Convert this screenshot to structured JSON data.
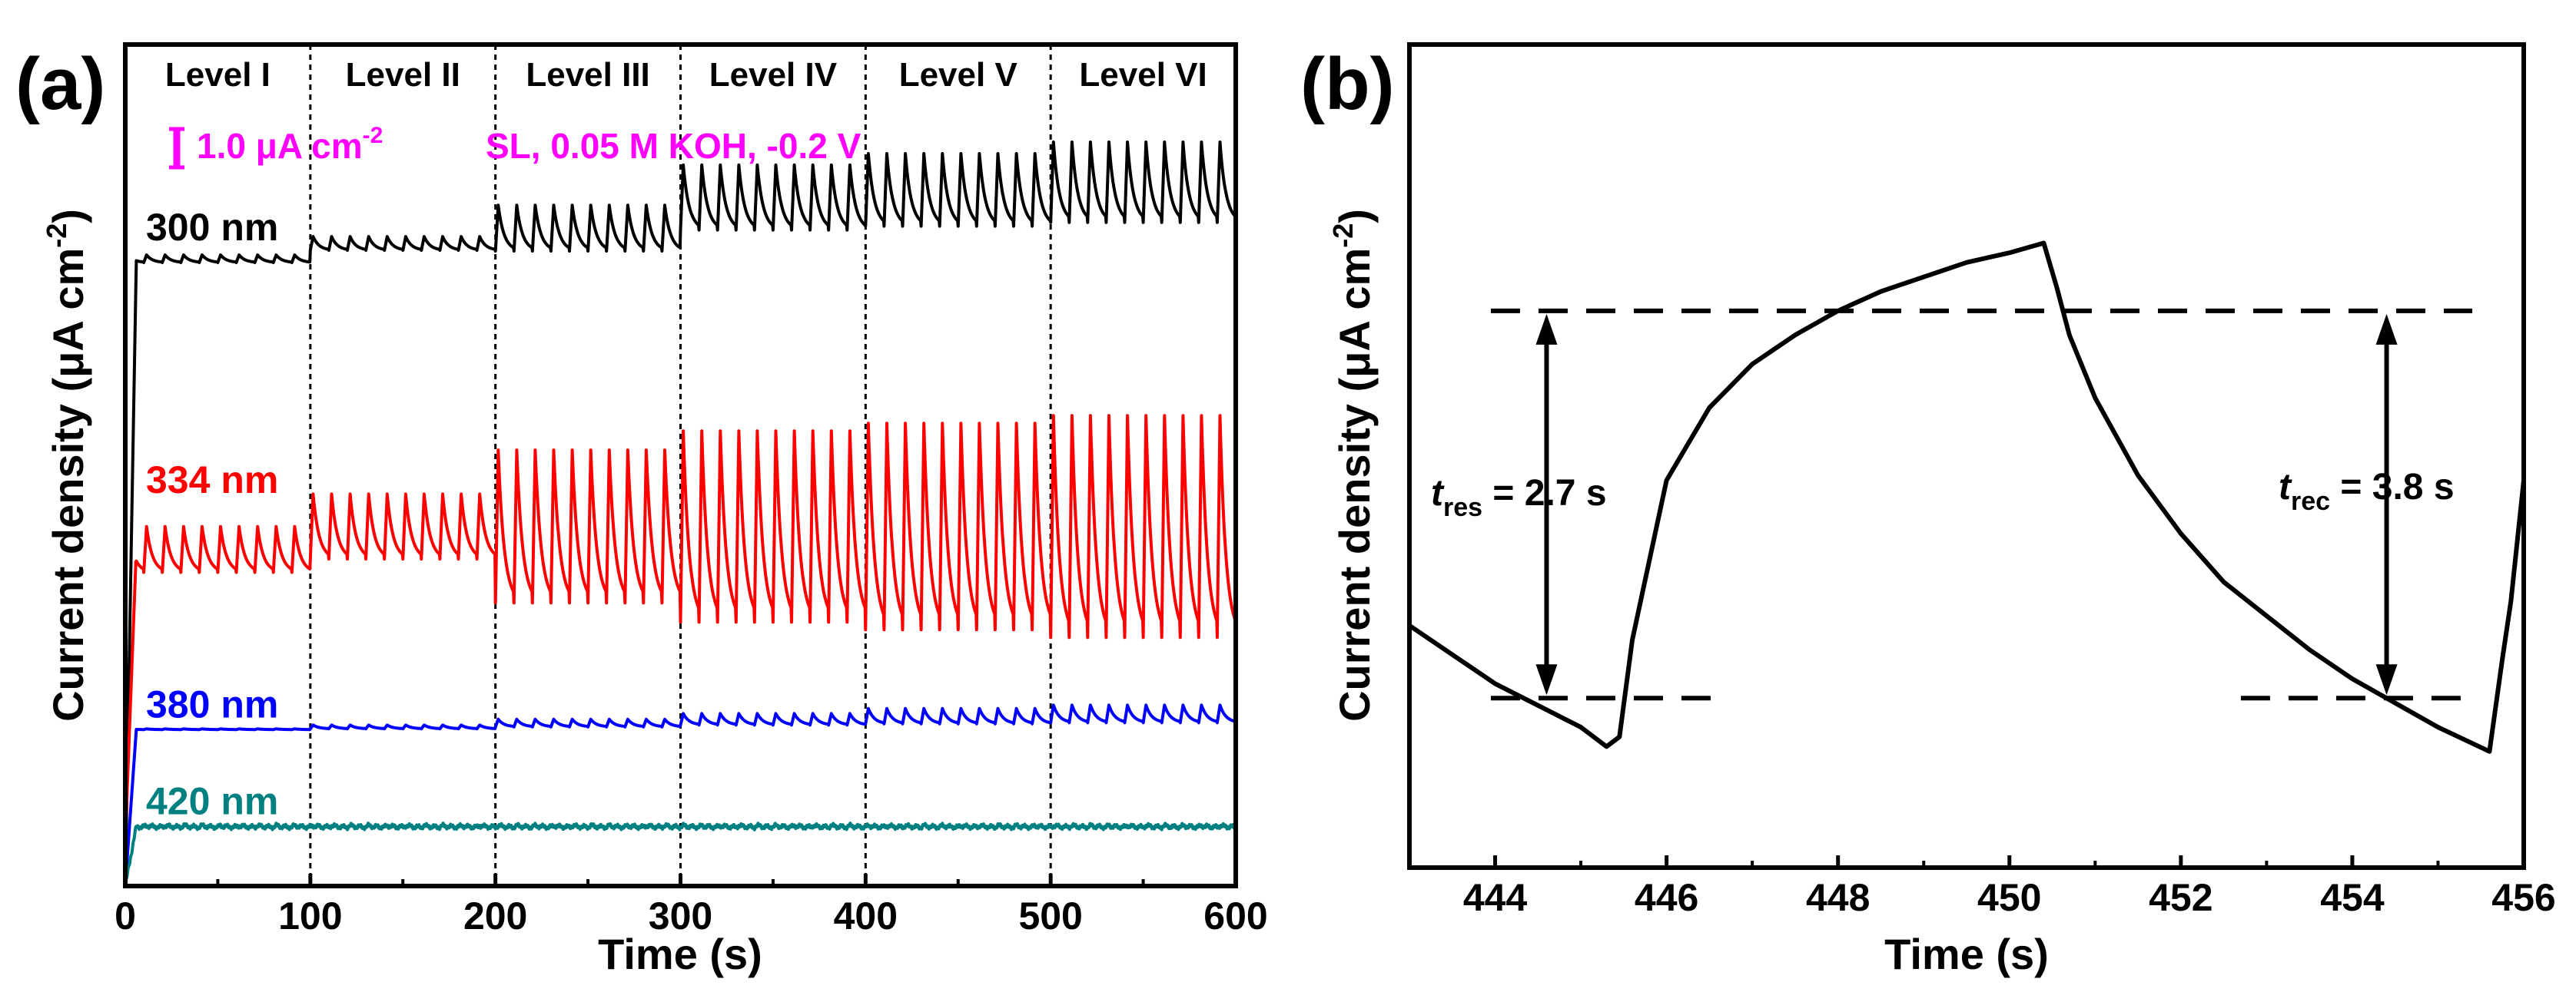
{
  "chart_data": [
    {
      "panel": "(a)",
      "type": "line",
      "xlabel": "Time (s)",
      "ylabel_main": "Current density (μA cm",
      "ylabel_sup": "-2",
      "ylabel_close": ")",
      "xlim": [
        0,
        600
      ],
      "xticks": [
        "0",
        "100",
        "200",
        "300",
        "400",
        "500",
        "600"
      ],
      "levels": [
        "Level I",
        "Level II",
        "Level III",
        "Level IV",
        "Level V",
        "Level VI"
      ],
      "level_boundaries": [
        100,
        200,
        300,
        400,
        500
      ],
      "scale_bar": {
        "value": "1.0 μA cm",
        "sup": "-2"
      },
      "conditions": "SL, 0.05 M KOH, -0.2 V",
      "series": [
        {
          "name": "300 nm",
          "color": "#000000",
          "period": 10,
          "baseline": [
            82,
            84,
            86,
            90,
            91,
            92
          ],
          "amplitude": [
            1.0,
            1.8,
            6.0,
            8.5,
            9.5,
            10.5
          ]
        },
        {
          "name": "334 nm",
          "color": "#ff0000",
          "period": 10,
          "baseline": [
            44,
            47,
            47,
            47,
            47,
            47
          ],
          "amplitude": [
            6.0,
            8.5,
            20.0,
            25.0,
            27.0,
            29.0
          ]
        },
        {
          "name": "380 nm",
          "color": "#0000ff",
          "period": 10,
          "baseline": [
            20.5,
            20.8,
            21.3,
            21.8,
            22.2,
            22.5
          ],
          "amplitude": [
            0.1,
            0.5,
            1.0,
            1.5,
            2.0,
            2.3
          ]
        },
        {
          "name": "420 nm",
          "color": "#008080",
          "period": 10,
          "baseline": [
            7.8,
            7.8,
            7.8,
            7.8,
            7.8,
            7.8
          ],
          "amplitude": [
            0.2,
            0.2,
            0.2,
            0.2,
            0.2,
            0.2
          ]
        }
      ]
    },
    {
      "panel": "(b)",
      "type": "line",
      "xlabel": "Time (s)",
      "ylabel_main": "Current density (μA cm",
      "ylabel_sup": "-2",
      "ylabel_close": ")",
      "xlim": [
        443,
        456
      ],
      "xticks": [
        "444",
        "446",
        "448",
        "450",
        "452",
        "454",
        "456"
      ],
      "response_time": {
        "t_label": "t",
        "sub": "res",
        "text": " = 2.7 s",
        "x": 444.6
      },
      "recovery_time": {
        "t_label": "t",
        "sub": "rec",
        "text": " = 3.8 s",
        "x": 454.4
      },
      "upper_level": 0.9,
      "lower_level": 0.1,
      "curve": {
        "x": [
          443,
          444,
          445,
          445.3,
          445.45,
          445.6,
          446,
          446.5,
          447,
          447.5,
          448,
          448.5,
          449,
          449.5,
          450,
          450.4,
          450.55,
          450.7,
          451,
          451.5,
          452,
          452.5,
          453,
          453.5,
          454,
          454.5,
          455,
          455.6,
          455.75,
          455.85,
          456
        ],
        "y": [
          0.25,
          0.13,
          0.04,
          0.0,
          0.02,
          0.22,
          0.55,
          0.7,
          0.79,
          0.85,
          0.9,
          0.94,
          0.97,
          1.0,
          1.02,
          1.04,
          0.95,
          0.85,
          0.72,
          0.56,
          0.44,
          0.34,
          0.27,
          0.2,
          0.14,
          0.09,
          0.04,
          -0.01,
          0.18,
          0.3,
          0.55
        ]
      }
    }
  ]
}
